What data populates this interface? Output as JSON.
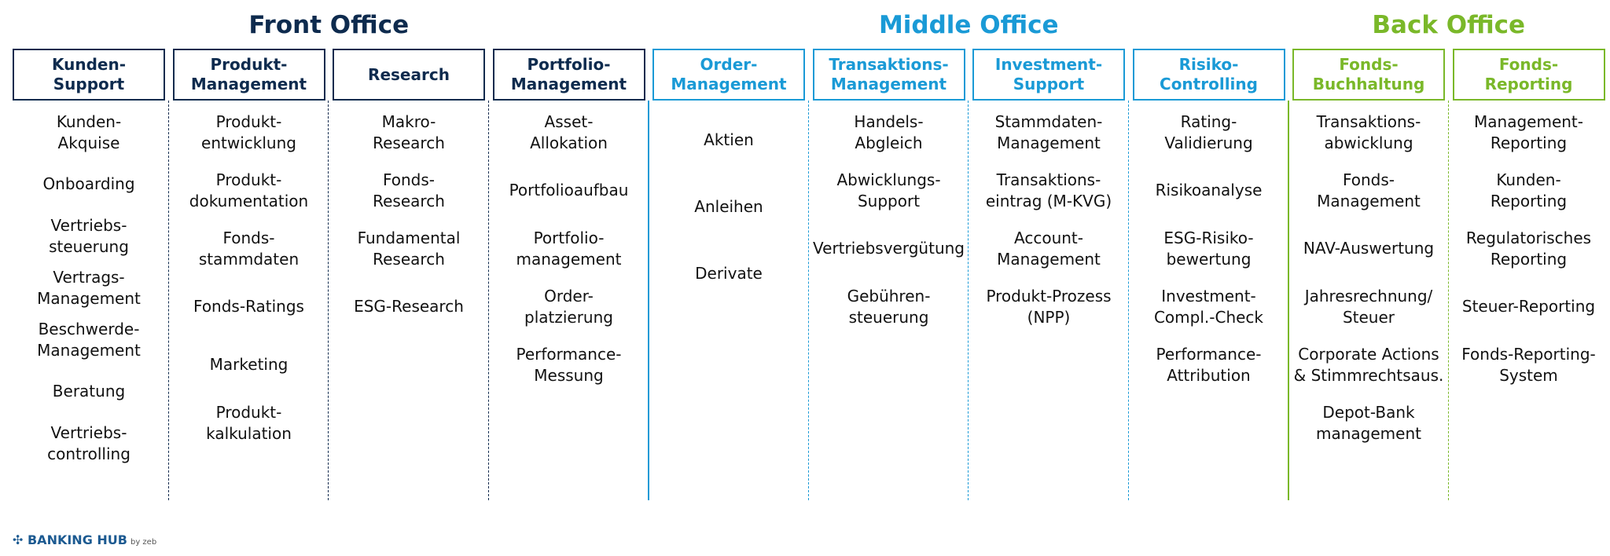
{
  "groups": [
    {
      "title": "Front Office",
      "color": "#0e2b4e",
      "columns": [
        {
          "header": "Kunden-\nSupport",
          "items": [
            "Kunden-\nAkquise",
            "Onboarding",
            "Vertriebs-\nsteuerung",
            "Vertrags-\nManagement",
            "Beschwerde-\nManagement",
            "Beratung",
            "Vertriebs-\ncontrolling"
          ]
        },
        {
          "header": "Produkt-\nManagement",
          "items": [
            "Produkt-\nentwicklung",
            "Produkt-\ndokumentation",
            "Fonds-\nstammdaten",
            "Fonds-Ratings",
            "Marketing",
            "Produkt-\nkalkulation"
          ]
        },
        {
          "header": "Research",
          "items": [
            "Makro-\nResearch",
            "Fonds-\nResearch",
            "Fundamental\nResearch",
            "ESG-Research"
          ]
        },
        {
          "header": "Portfolio-\nManagement",
          "items": [
            "Asset-\nAllokation",
            "Portfolioaufbau",
            "Portfolio-\nmanagement",
            "Order-\nplatzierung",
            "Performance-\nMessung"
          ]
        }
      ]
    },
    {
      "title": "Middle Office",
      "color": "#1a9ad6",
      "columns": [
        {
          "header": "Order-\nManagement",
          "items": [
            "Aktien",
            "Anleihen",
            "Derivate"
          ]
        },
        {
          "header": "Transaktions-\nManagement",
          "items": [
            "Handels-\nAbgleich",
            "Abwicklungs-\nSupport",
            "Vertriebsvergütung",
            "Gebühren-\nsteuerung"
          ]
        },
        {
          "header": "Investment-\nSupport",
          "items": [
            "Stammdaten-\nManagement",
            "Transaktions-\neintrag (M-KVG)",
            "Account-\nManagement",
            "Produkt-Prozess\n(NPP)"
          ]
        },
        {
          "header": "Risiko-\nControlling",
          "items": [
            "Rating-\nValidierung",
            "Risikoanalyse",
            "ESG-Risiko-\nbewertung",
            "Investment-\nCompl.-Check",
            "Performance-\nAttribution"
          ]
        }
      ]
    },
    {
      "title": "Back Office",
      "color": "#7ab829",
      "columns": [
        {
          "header": "Fonds-\nBuchhaltung",
          "items": [
            "Transaktions-\nabwicklung",
            "Fonds-\nManagement",
            "NAV-Auswertung",
            "Jahresrechnung/\nSteuer",
            "Corporate Actions\n& Stimmrechtsaus.",
            "Depot-Bank\nmanagement"
          ]
        },
        {
          "header": "Fonds-\nReporting",
          "items": [
            "Management-\nReporting",
            "Kunden-\nReporting",
            "Regulatorisches\nReporting",
            "Steuer-Reporting",
            "Fonds-Reporting-\nSystem"
          ]
        }
      ]
    }
  ],
  "logo": {
    "brand": "BANKING HUB",
    "by": "by zeb"
  }
}
